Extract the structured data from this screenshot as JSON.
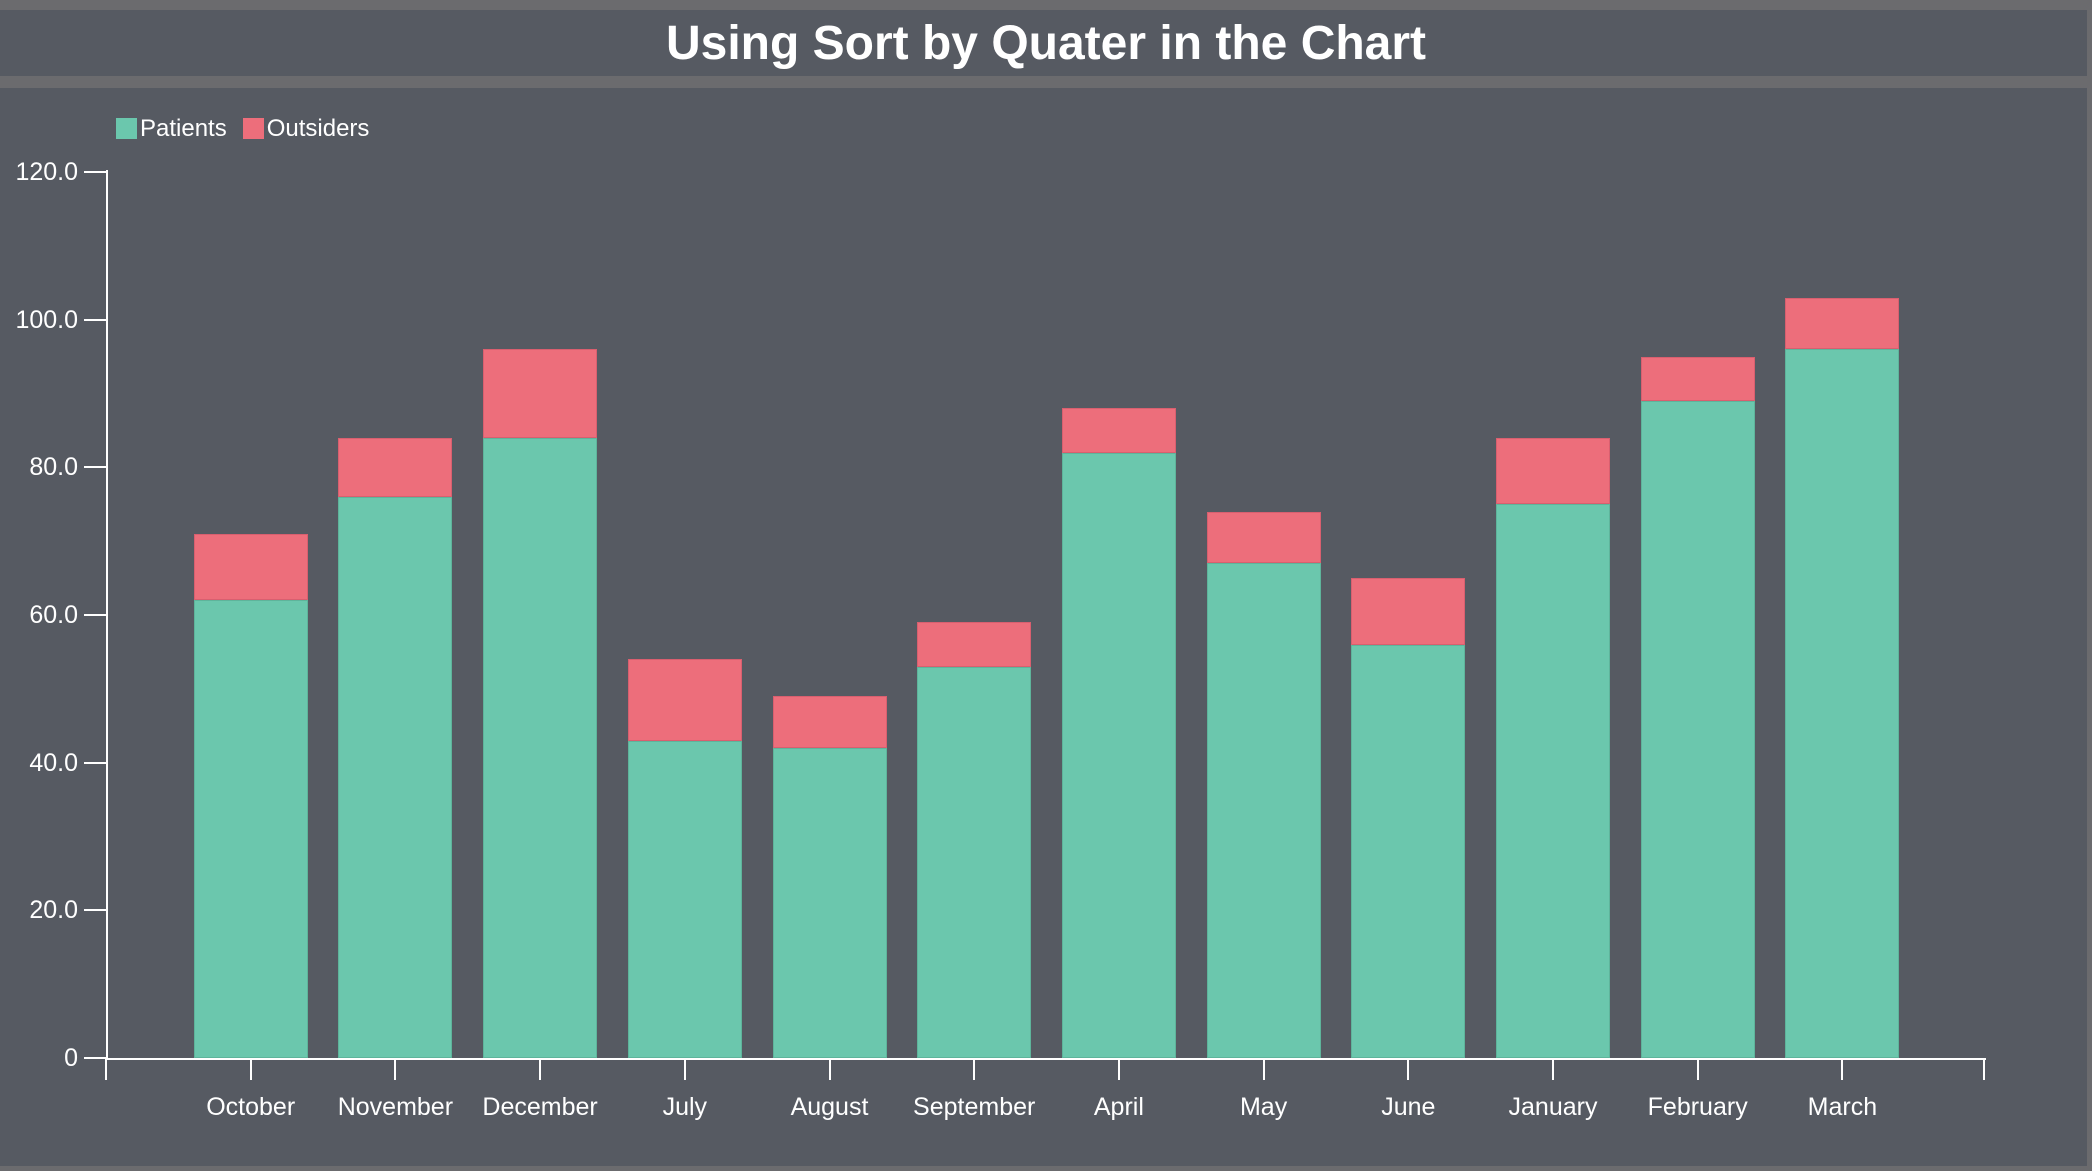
{
  "title": "Using Sort by Quater in the Chart",
  "chart_data": {
    "type": "bar",
    "stacked": true,
    "title": "Using Sort by Quater in the Chart",
    "categories": [
      "October",
      "November",
      "December",
      "July",
      "August",
      "September",
      "April",
      "May",
      "June",
      "January",
      "February",
      "March"
    ],
    "series": [
      {
        "name": "Patients",
        "color": "#6BC7AD",
        "border": "#5EB49B",
        "values": [
          62,
          76,
          84,
          43,
          42,
          53,
          82,
          67,
          56,
          75,
          89,
          96
        ]
      },
      {
        "name": "Outsiders",
        "color": "#ED6E7B",
        "border": "#D95F6F",
        "values": [
          9,
          8,
          12,
          11,
          7,
          6,
          6,
          7,
          9,
          9,
          6,
          7
        ]
      }
    ],
    "stack_totals": [
      71,
      84,
      96,
      54,
      49,
      59,
      88,
      74,
      65,
      84,
      95,
      103
    ],
    "xlabel": "",
    "ylabel": "",
    "ylim": [
      0,
      120
    ],
    "yticks": [
      {
        "value": 0,
        "label": "0"
      },
      {
        "value": 20,
        "label": "20.0"
      },
      {
        "value": 40,
        "label": "40.0"
      },
      {
        "value": 60,
        "label": "60.0"
      },
      {
        "value": 80,
        "label": "80.0"
      },
      {
        "value": 100,
        "label": "100.0"
      },
      {
        "value": 120,
        "label": "120.0"
      }
    ],
    "grid": false,
    "legend_position": "top-left"
  },
  "colors": {
    "background": "#565A62",
    "frame": "#6B6B6E",
    "text": "#FFFFFF",
    "patients": "#6BC7AD",
    "outsiders": "#ED6E7B"
  }
}
